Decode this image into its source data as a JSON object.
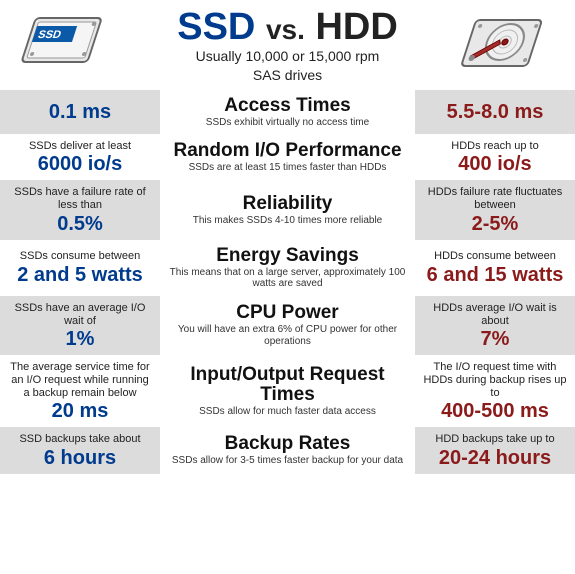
{
  "header": {
    "title_ssd": "SSD",
    "title_vs": "vs.",
    "title_hdd": "HDD",
    "subtitle_l1": "Usually 10,000 or 15,000 rpm",
    "subtitle_l2": "SAS drives"
  },
  "colors": {
    "ssd": "#003b8e",
    "hdd": "#8b1a1a",
    "alt_bg": "#dcdcdc",
    "text": "#222222"
  },
  "rows": [
    {
      "left_lead": "",
      "left_val": "0.1 ms",
      "mid_title": "Access Times",
      "mid_sub": "SSDs exhibit virtually no access time",
      "right_lead": "",
      "right_val": "5.5-8.0 ms"
    },
    {
      "left_lead": "SSDs deliver at least",
      "left_val": "6000 io/s",
      "mid_title": "Random I/O Performance",
      "mid_sub": "SSDs are at least 15 times faster than HDDs",
      "right_lead": "HDDs reach up to",
      "right_val": "400 io/s"
    },
    {
      "left_lead": "SSDs have a failure rate of less than",
      "left_val": "0.5%",
      "mid_title": "Reliability",
      "mid_sub": "This makes SSDs 4-10 times more reliable",
      "right_lead": "HDDs failure rate fluctuates between",
      "right_val": "2-5%"
    },
    {
      "left_lead": "SSDs consume between",
      "left_val": "2 and 5 watts",
      "mid_title": "Energy Savings",
      "mid_sub": "This means that on a large server, approximately 100 watts are saved",
      "right_lead": "HDDs consume between",
      "right_val": "6 and 15 watts"
    },
    {
      "left_lead": "SSDs have an average I/O wait of",
      "left_val": "1%",
      "mid_title": "CPU Power",
      "mid_sub": "You will have an extra 6% of CPU power for other operations",
      "right_lead": "HDDs average I/O wait is about",
      "right_val": "7%"
    },
    {
      "left_lead": "The average service time for an I/O request while running a backup remain below",
      "left_val": "20 ms",
      "mid_title": "Input/Output Request Times",
      "mid_sub": "SSDs allow for much faster data access",
      "right_lead": "The I/O request time with HDDs during backup rises up to",
      "right_val": "400-500 ms"
    },
    {
      "left_lead": "SSD backups take about",
      "left_val": "6 hours",
      "mid_title": "Backup Rates",
      "mid_sub": "SSDs allow for 3-5 times faster backup for your data",
      "right_lead": "HDD backups take up to",
      "right_val": "20-24 hours"
    }
  ]
}
